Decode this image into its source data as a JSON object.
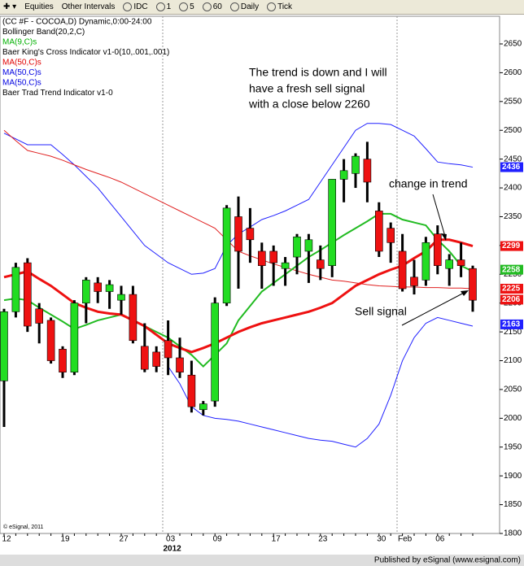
{
  "toolbar": {
    "items": [
      "Equities",
      "Other Intervals",
      "IDC",
      "1",
      "5",
      "60",
      "Daily",
      "Tick"
    ]
  },
  "chart_data": {
    "type": "candlestick",
    "legend_lines": [
      {
        "text": "(CC #F - COCOA,D) Dynamic,0:00-24:00",
        "color": "#000000"
      },
      {
        "text": "Bollinger Band(20,2,C)",
        "color": "#000000"
      },
      {
        "text": "MA(9,C)s",
        "color": "#00b000"
      },
      {
        "text": "Baer King's Cross Indicator v1-0(10,.001,.001)",
        "color": "#000000"
      },
      {
        "text": "MA(50,C)s",
        "color": "#e00000"
      },
      {
        "text": "MA(50,C)s",
        "color": "#0000e0"
      },
      {
        "text": "MA(50,C)s",
        "color": "#0000e0"
      },
      {
        "text": "Baer Trad Trend Indicator v1-0",
        "color": "#000000"
      }
    ],
    "annotations": [
      "The trend is down and I will",
      "have a fresh sell signal",
      " with a close below 2260",
      "change in trend",
      "Sell signal"
    ],
    "watermark": "© eSignal, 2011",
    "footer": "Published by eSignal (www.esignal.com)",
    "year_label": "2012",
    "categories": [
      "12",
      null,
      null,
      null,
      null,
      "19",
      null,
      null,
      null,
      null,
      "27",
      null,
      null,
      null,
      "03",
      null,
      null,
      null,
      "09",
      null,
      null,
      null,
      null,
      "17",
      null,
      null,
      null,
      "23",
      null,
      null,
      null,
      null,
      "30",
      null,
      "Feb",
      null,
      null,
      "06",
      null,
      null,
      null
    ],
    "open": [
      2065,
      2185,
      2270,
      2190,
      2170,
      2120,
      2080,
      2200,
      2235,
      2220,
      2205,
      2215,
      2125,
      2115,
      2135,
      2105,
      2075,
      2015,
      2030,
      2200,
      2350,
      2330,
      2290,
      2290,
      2260,
      2280,
      2290,
      2275,
      2265,
      2415,
      2425,
      2450,
      2360,
      2330,
      2290,
      2245,
      2240,
      2320,
      2260,
      2275,
      2260
    ],
    "high": [
      2190,
      2270,
      2278,
      2200,
      2175,
      2125,
      2205,
      2245,
      2245,
      2240,
      2230,
      2230,
      2165,
      2125,
      2170,
      2140,
      2100,
      2030,
      2210,
      2370,
      2385,
      2365,
      2305,
      2300,
      2280,
      2320,
      2320,
      2300,
      2415,
      2450,
      2460,
      2480,
      2375,
      2340,
      2320,
      2275,
      2315,
      2335,
      2285,
      2305,
      2265
    ],
    "low": [
      1985,
      2175,
      2150,
      2130,
      2095,
      2070,
      2075,
      2165,
      2200,
      2190,
      2180,
      2130,
      2080,
      2080,
      2075,
      2070,
      2010,
      2005,
      2020,
      2195,
      2225,
      2270,
      2225,
      2230,
      2230,
      2250,
      2235,
      2240,
      2245,
      2375,
      2400,
      2375,
      2280,
      2270,
      2220,
      2215,
      2230,
      2250,
      2230,
      2245,
      2185
    ],
    "close": [
      2185,
      2262,
      2160,
      2165,
      2100,
      2080,
      2200,
      2240,
      2220,
      2232,
      2215,
      2135,
      2085,
      2090,
      2105,
      2080,
      2020,
      2025,
      2200,
      2365,
      2290,
      2310,
      2265,
      2270,
      2270,
      2315,
      2310,
      2260,
      2415,
      2430,
      2455,
      2410,
      2290,
      2305,
      2225,
      2230,
      2305,
      2265,
      2275,
      2265,
      2205
    ],
    "up_color": "#22dd22",
    "down_color": "#ee1111",
    "overlays": [
      {
        "color": "#2020ff",
        "width": 1,
        "values": [
          2495,
          2485,
          2475,
          2475,
          2475,
          2458,
          2440,
          2420,
          2400,
          2375,
          2350,
          2325,
          2300,
          2285,
          2270,
          2260,
          2250,
          2252,
          2260,
          2300,
          2320,
          2332,
          2345,
          2352,
          2360,
          2370,
          2380,
          2410,
          2440,
          2470,
          2500,
          2512,
          2512,
          2510,
          2500,
          2490,
          2468,
          2445,
          2442,
          2440,
          2436
        ]
      },
      {
        "color": "#2020ff",
        "width": 1,
        "values": [
          null,
          null,
          null,
          null,
          null,
          null,
          null,
          null,
          null,
          null,
          null,
          null,
          null,
          null,
          2090,
          2060,
          2020,
          2005,
          2000,
          1998,
          1995,
          1990,
          1985,
          1980,
          1975,
          1970,
          1965,
          1962,
          1960,
          1955,
          1950,
          1965,
          1990,
          2040,
          2100,
          2140,
          2165,
          2175,
          2170,
          2165,
          2160
        ]
      },
      {
        "color": "#e02020",
        "width": 1,
        "values": [
          2500,
          2482,
          2465,
          2460,
          2455,
          2448,
          2440,
          2432,
          2425,
          2418,
          2410,
          2400,
          2390,
          2380,
          2370,
          2360,
          2350,
          2340,
          2330,
          2310,
          2290,
          2282,
          2275,
          2268,
          2262,
          2256,
          2250,
          2245,
          2240,
          2238,
          2235,
          2232,
          2230,
          2229,
          2228,
          2228,
          2227,
          2227,
          2226,
          2226,
          2225
        ]
      },
      {
        "color": "#22bb22",
        "width": 2,
        "values": [
          2205,
          2208,
          2205,
          2192,
          2180,
          2168,
          2155,
          2162,
          2170,
          2175,
          2180,
          2170,
          2160,
          2150,
          2140,
          2125,
          2110,
          2090,
          2110,
          2130,
          2170,
          2195,
          2220,
          2235,
          2250,
          2265,
          2280,
          2292,
          2305,
          2318,
          2330,
          2342,
          2355,
          2355,
          2345,
          2340,
          2335,
          2310,
          2290,
          2265,
          2255
        ]
      },
      {
        "color": "#ee1111",
        "width": 3,
        "values": [
          2245,
          2250,
          2255,
          2242,
          2230,
          2215,
          2200,
          2192,
          2185,
          2182,
          2180,
          2170,
          2160,
          2145,
          2130,
          2122,
          2115,
          2122,
          2130,
          2140,
          2150,
          2158,
          2165,
          2170,
          2175,
          2180,
          2185,
          2192,
          2200,
          2215,
          2230,
          2240,
          2250,
          2258,
          2265,
          2278,
          2290,
          2310,
          2310,
          2305,
          2299
        ]
      }
    ],
    "price_markers": [
      {
        "value": 2436,
        "color": "#2020ff"
      },
      {
        "value": 2299,
        "color": "#ee1111"
      },
      {
        "value": 2258,
        "color": "#22bb22"
      },
      {
        "value": 2225,
        "color": "#ee1111"
      },
      {
        "value": 2206,
        "color": "#ee1111"
      },
      {
        "value": 2163,
        "color": "#2020ff"
      }
    ],
    "ylim": [
      1800,
      2698
    ],
    "yticks": [
      1800,
      1850,
      1900,
      1950,
      2000,
      2050,
      2100,
      2150,
      2200,
      2250,
      2300,
      2350,
      2400,
      2450,
      2500,
      2550,
      2600,
      2650
    ]
  }
}
